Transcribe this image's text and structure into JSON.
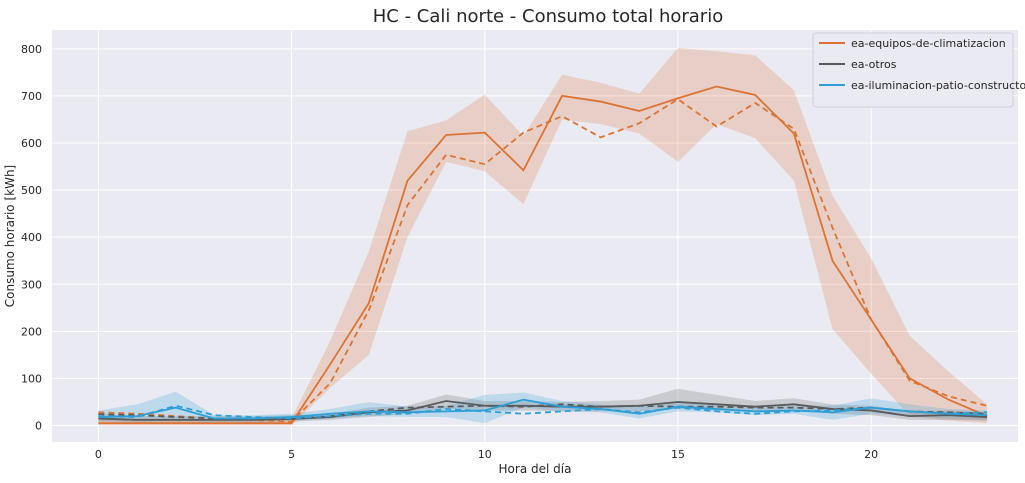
{
  "chart_data": {
    "type": "line",
    "title": "HC - Cali norte - Consumo total horario",
    "xlabel": "Hora del día",
    "ylabel": "Consumo horario [kWh]",
    "xlim": [
      -1.2,
      23.8
    ],
    "ylim": [
      -35,
      840
    ],
    "xticks": [
      0,
      5,
      10,
      15,
      20
    ],
    "yticks": [
      0,
      100,
      200,
      300,
      400,
      500,
      600,
      700,
      800
    ],
    "grid": true,
    "legend_position": "top-right",
    "x": [
      0,
      1,
      2,
      3,
      4,
      5,
      6,
      7,
      8,
      9,
      10,
      11,
      12,
      13,
      14,
      15,
      16,
      17,
      18,
      19,
      20,
      21,
      22,
      23
    ],
    "series": [
      {
        "name": "ea-equipos-de-climatizacion",
        "color": "#dd7332",
        "values": [
          5,
          5,
          5,
          5,
          5,
          5,
          130,
          260,
          520,
          617,
          622,
          542,
          700,
          688,
          668,
          695,
          720,
          702,
          620,
          350,
          225,
          100,
          55,
          20
        ],
        "lower": [
          0,
          0,
          0,
          0,
          0,
          0,
          80,
          150,
          400,
          560,
          540,
          470,
          650,
          640,
          620,
          560,
          640,
          610,
          520,
          205,
          110,
          20,
          10,
          5
        ],
        "upper": [
          15,
          15,
          15,
          15,
          15,
          15,
          180,
          370,
          625,
          648,
          703,
          615,
          745,
          728,
          705,
          802,
          795,
          786,
          712,
          488,
          355,
          190,
          115,
          45
        ],
        "dashed": [
          28,
          25,
          20,
          15,
          12,
          8,
          90,
          245,
          468,
          575,
          555,
          622,
          657,
          612,
          642,
          693,
          635,
          685,
          630,
          420,
          225,
          95,
          62,
          42
        ]
      },
      {
        "name": "ea-otros",
        "color": "#5a5a5a",
        "values": [
          15,
          12,
          12,
          12,
          12,
          14,
          18,
          28,
          32,
          52,
          42,
          42,
          40,
          40,
          42,
          50,
          45,
          40,
          45,
          35,
          32,
          20,
          22,
          18
        ],
        "lower": [
          8,
          6,
          6,
          6,
          6,
          8,
          12,
          18,
          25,
          35,
          32,
          32,
          30,
          30,
          30,
          35,
          32,
          30,
          35,
          25,
          22,
          12,
          12,
          10
        ],
        "upper": [
          25,
          20,
          20,
          20,
          20,
          22,
          25,
          38,
          42,
          66,
          52,
          52,
          50,
          52,
          55,
          78,
          65,
          52,
          58,
          45,
          42,
          30,
          32,
          28
        ],
        "dashed": [
          24,
          22,
          18,
          15,
          14,
          14,
          20,
          30,
          38,
          40,
          42,
          40,
          45,
          40,
          42,
          40,
          40,
          38,
          38,
          35,
          38,
          30,
          28,
          25
        ]
      },
      {
        "name": "ea-iluminacion-patio-constructor",
        "color": "#2b9fd6",
        "values": [
          18,
          20,
          38,
          15,
          15,
          18,
          25,
          30,
          28,
          30,
          32,
          55,
          40,
          35,
          25,
          40,
          35,
          30,
          32,
          28,
          38,
          30,
          25,
          22
        ],
        "lower": [
          10,
          8,
          10,
          8,
          8,
          10,
          15,
          20,
          18,
          18,
          5,
          38,
          30,
          28,
          15,
          30,
          28,
          22,
          25,
          12,
          25,
          20,
          15,
          12
        ],
        "upper": [
          32,
          45,
          72,
          22,
          22,
          25,
          35,
          50,
          40,
          42,
          65,
          70,
          52,
          45,
          40,
          52,
          45,
          38,
          42,
          42,
          58,
          45,
          35,
          32
        ],
        "dashed": [
          20,
          18,
          42,
          22,
          18,
          15,
          20,
          25,
          25,
          35,
          30,
          25,
          30,
          35,
          28,
          38,
          30,
          25,
          30,
          32,
          38,
          30,
          25,
          28
        ]
      }
    ]
  }
}
